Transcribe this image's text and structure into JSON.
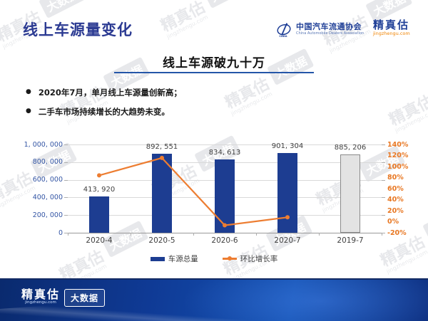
{
  "slide": {
    "title": "线上车源量变化"
  },
  "logos": {
    "cada": {
      "name_cn": "中国汽车流通协会",
      "name_en": "China Automobile Dealers Association"
    },
    "jingzhengu": {
      "name": "精真估",
      "url": "jingzhengu.com"
    }
  },
  "headline": "线上车源破九十万",
  "bullets": [
    "2020年7月，单月线上车源量创新高；",
    "二手车市场持续增长的大趋势未变。"
  ],
  "chart_data": {
    "type": "bar",
    "title": "线上车源破九十万",
    "categories": [
      "2020-4",
      "2020-5",
      "2020-6",
      "2020-7",
      "2019-7"
    ],
    "series": [
      {
        "name": "车源总量",
        "type": "bar",
        "values": [
          413920,
          892551,
          834613,
          901304,
          885206
        ]
      },
      {
        "name": "环比增长率",
        "type": "line",
        "unit": "%",
        "values": [
          84,
          115.6,
          -6.5,
          8.0,
          null
        ]
      }
    ],
    "bar_value_labels": [
      "413, 920",
      "892, 551",
      "834, 613",
      "901, 304",
      "885, 206"
    ],
    "left_axis": {
      "min": 0,
      "max": 1000000,
      "tick_labels": [
        "1, 000, 000",
        "800, 000",
        "600, 000",
        "400, 000",
        "200, 000",
        "0"
      ]
    },
    "right_axis": {
      "min": -20,
      "max": 140,
      "tick_labels": [
        "140%",
        "120%",
        "100%",
        "80%",
        "60%",
        "40%",
        "20%",
        "0%",
        "-20%"
      ]
    },
    "legend_position": "bottom",
    "grid": true,
    "last_bar_style": "gray-highlight"
  },
  "legend": {
    "bars": "车源总量",
    "line": "环比增长率"
  },
  "footer": {
    "brand": "精真估",
    "brand_url": "jingzhengu.com",
    "badge": "大数据"
  },
  "watermark": {
    "brand": "精真估",
    "url": "jingzhengu.com",
    "badge": "大数据"
  },
  "colors": {
    "bar_blue": "#1d3d91",
    "bar_gray": "#e3e3e3",
    "bar_gray_border": "#8a8a8a",
    "line_orange": "#ed7d31",
    "left_axis_text": "#3355a4",
    "right_axis_text": "#e87722",
    "title_blue": "#2b3a92",
    "underline_blue": "#2456a8",
    "footer_blue": "#0d3488"
  }
}
